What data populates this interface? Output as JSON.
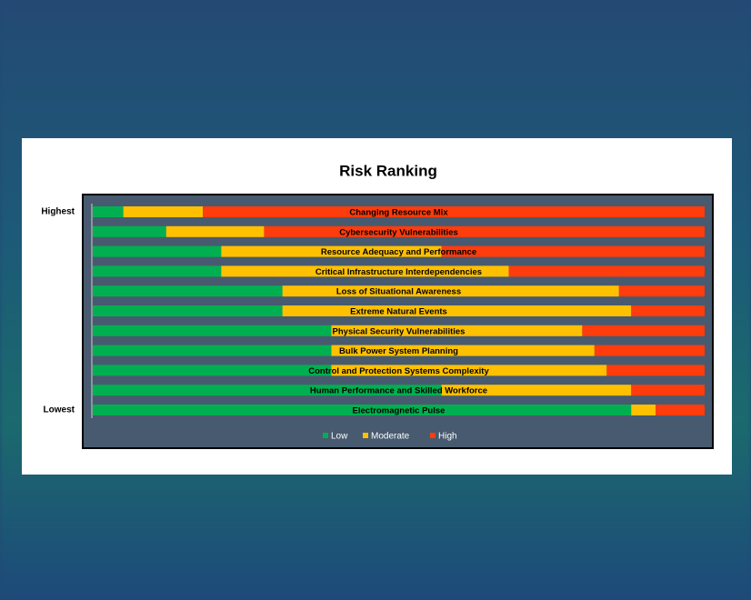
{
  "chart_data": {
    "type": "stacked_bar_horizontal",
    "title": "Risk Ranking",
    "annotations": [
      "Highest",
      "Lowest"
    ],
    "categories": [
      "Changing Resource Mix",
      "Cybersecurity Vulnerabilities",
      "Resource Adequacy and Performance",
      "Critical Infrastructure Interdependencies",
      "Loss of Situational Awareness",
      "Extreme Natural Events",
      "Physical Security Vulnerabilities",
      "Bulk Power System Planning",
      "Control and Protection Systems Complexity",
      "Human Performance and Skilled Workforce",
      "Electromagnetic Pulse"
    ],
    "series": [
      {
        "name": "Low",
        "color": "#00b050",
        "values": [
          5,
          12,
          21,
          21,
          31,
          31,
          39,
          39,
          39,
          57,
          88
        ]
      },
      {
        "name": "Moderate",
        "color": "#ffc000",
        "values": [
          13,
          16,
          36,
          47,
          55,
          57,
          41,
          43,
          45,
          31,
          4
        ]
      },
      {
        "name": "High",
        "color": "#ff3c0c",
        "values": [
          82,
          72,
          43,
          32,
          14,
          12,
          20,
          18,
          16,
          12,
          8
        ]
      }
    ],
    "xlim": [
      0,
      100
    ],
    "legend": "bottom"
  }
}
